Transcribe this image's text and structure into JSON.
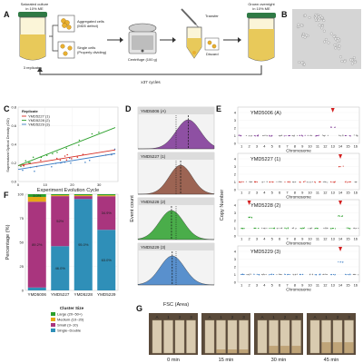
{
  "colors": {
    "medium": "#e8c95a",
    "cell": "#e9b030",
    "cap": "#2f7a45",
    "arrow": "#333333",
    "green": "#2ca02c",
    "blue": "#3d7ec5",
    "purple": "#7b3294",
    "red": "#d73027",
    "brown": "#8c4a36",
    "grey": "#888888",
    "cs_large": "#2ca02c",
    "cs_medium": "#e6a817",
    "cs_small": "#a9357e",
    "cs_single": "#2f8fb8"
  },
  "panelA": {
    "letter": "A",
    "culture_label": [
      "Saturated culture",
      "in 10% ME"
    ],
    "replicates": "3 replicates",
    "aggregated": [
      "Aggregated cells",
      "(MD5 defect)"
    ],
    "single": [
      "Single cells",
      "(Properly dividing)"
    ],
    "centrifuge": "Centrifuge (100 g)",
    "transfer": "Transfer",
    "discard": "Discard",
    "grown": [
      "Grown overnight",
      "in 10% ME"
    ],
    "cycles": "x37 cycles"
  },
  "panelB": {
    "letter": "B"
  },
  "panelC": {
    "letter": "C",
    "legend_title": "Replicate",
    "legend": [
      "YMD5227 (1)",
      "YMD5228 (2)",
      "YMD5229 (3)"
    ],
    "xlabel": "Experiment Evolution Cycle",
    "ylabel": "Supernatant Optical Density (OD)"
  },
  "panelD": {
    "letter": "D",
    "ylabel": "Event count",
    "xlabel": "FSC (Area)",
    "strains": [
      "YMD5006 (A)",
      "YMD5227 (1)",
      "YMD5228 (2)",
      "YMD5229 (3)"
    ]
  },
  "panelE": {
    "letter": "E",
    "ylabel": "Copy Number",
    "xlabel": "Chromosome",
    "strains": [
      "YMD5006 (A)",
      "YMD5227 (1)",
      "YMD5228 (2)",
      "YMD5229 (3)"
    ],
    "chromosomes": [
      "1",
      "2",
      "3",
      "4",
      "5",
      "6",
      "7",
      "8",
      "9",
      "10",
      "11",
      "12",
      "13",
      "14",
      "15",
      "16"
    ]
  },
  "panelF": {
    "letter": "F",
    "ylabel": "Percentage (%)",
    "legend_title": "Cluster Size",
    "legend": [
      "Large (20~50+)",
      "Medium (10~20)",
      "Small (3~10)",
      "Single~Double"
    ]
  },
  "panelG": {
    "letter": "G",
    "times": [
      "0 min",
      "15 min",
      "30 min",
      "45 min"
    ],
    "tube_labels": [
      "A",
      "1",
      "2",
      "3"
    ]
  },
  "chart_data": [
    {
      "type": "scatter",
      "panel": "C",
      "xlabel": "Experiment Evolution Cycle",
      "ylabel": "Supernatant Optical Density (OD)",
      "xlim": [
        0,
        37
      ],
      "ylim": [
        0,
        0.8
      ],
      "x_ticks": [
        0,
        10,
        20,
        30
      ],
      "y_ticks": [
        0.0,
        0.2,
        0.4,
        0.6,
        0.8
      ],
      "series": [
        {
          "name": "YMD5227 (1)",
          "trend": [
            [
              0,
              0.17
            ],
            [
              36,
              0.34
            ]
          ]
        },
        {
          "name": "YMD5228 (2)",
          "trend": [
            [
              0,
              0.17
            ],
            [
              36,
              0.58
            ]
          ]
        },
        {
          "name": "YMD5229 (3)",
          "trend": [
            [
              0,
              0.13
            ],
            [
              36,
              0.3
            ]
          ]
        }
      ]
    },
    {
      "type": "area",
      "panel": "D",
      "xlabel": "FSC (Area)",
      "ylabel": "Event count",
      "series": [
        {
          "name": "YMD5006 (A)",
          "peak": 0.66,
          "width": 0.16
        },
        {
          "name": "YMD5227 (1)",
          "peak": 0.56,
          "width": 0.15
        },
        {
          "name": "YMD5228 (2)",
          "peak": 0.44,
          "width": 0.16
        },
        {
          "name": "YMD5229 (3)",
          "peak": 0.45,
          "width": 0.16
        }
      ]
    },
    {
      "type": "scatter",
      "panel": "E",
      "xlabel": "Chromosome",
      "ylabel": "Copy Number",
      "ylim": [
        0,
        4
      ],
      "y_ticks": [
        0,
        1,
        2,
        3,
        4
      ],
      "series": [
        {
          "name": "YMD5006 (A)",
          "gains": [
            {
              "chromosome": 13,
              "copy": 2.1
            }
          ]
        },
        {
          "name": "YMD5227 (1)",
          "gains": [
            {
              "chromosome": 14,
              "copy": 3.0
            }
          ]
        },
        {
          "name": "YMD5228 (2)",
          "gains": [
            {
              "chromosome": 2,
              "copy": 2.4
            },
            {
              "chromosome": 14,
              "copy": 2.6
            }
          ]
        },
        {
          "name": "YMD5229 (3)",
          "gains": [
            {
              "chromosome": 14,
              "copy": 2.6
            }
          ]
        }
      ]
    },
    {
      "type": "bar",
      "panel": "F",
      "stacked": true,
      "categories": [
        "YMD5006",
        "YMD5227",
        "YMD5228",
        "YMD5229"
      ],
      "ylim": [
        0,
        100
      ],
      "y_ticks": [
        0,
        25,
        50,
        75,
        100
      ],
      "series": [
        {
          "name": "Single~Double",
          "values": [
            3.0,
            46.0,
            95.0,
            63.0
          ]
        },
        {
          "name": "Small (3~10)",
          "values": [
            89.2,
            52.0,
            3.0,
            34.9
          ]
        },
        {
          "name": "Medium (10~20)",
          "values": [
            5.0,
            1.0,
            1.0,
            1.0
          ]
        },
        {
          "name": "Large (20~50+)",
          "values": [
            2.8,
            1.0,
            1.0,
            1.1
          ]
        }
      ],
      "labels": [
        [
          "",
          "89.2%",
          "",
          "3.0%"
        ],
        [
          "46.0%",
          "52%",
          "",
          ""
        ],
        [
          "95.0%",
          "",
          "",
          ""
        ],
        [
          "63.0%",
          "34.9%",
          "",
          ""
        ]
      ]
    }
  ]
}
